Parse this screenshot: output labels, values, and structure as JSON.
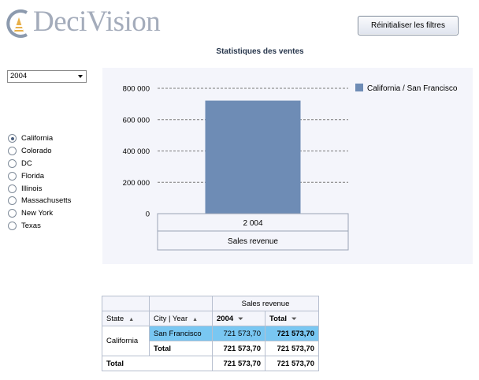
{
  "logo": {
    "text": "DeciVision"
  },
  "toolbar": {
    "reset_label": "Réinitialiser les filtres"
  },
  "page": {
    "title": "Statistiques des ventes"
  },
  "filters": {
    "year": {
      "selected": "2004"
    },
    "states": [
      {
        "label": "California",
        "checked": true
      },
      {
        "label": "Colorado",
        "checked": false
      },
      {
        "label": "DC",
        "checked": false
      },
      {
        "label": "Florida",
        "checked": false
      },
      {
        "label": "Illinois",
        "checked": false
      },
      {
        "label": "Massachusetts",
        "checked": false
      },
      {
        "label": "New York",
        "checked": false
      },
      {
        "label": "Texas",
        "checked": false
      }
    ]
  },
  "chart_data": {
    "type": "bar",
    "categories": [
      "2 004"
    ],
    "series": [
      {
        "name": "California / San Francisco",
        "values": [
          721573.7
        ],
        "color": "#6e8cb5"
      }
    ],
    "xlabel": "Sales revenue",
    "ylabel": "",
    "ylim": [
      0,
      800000
    ],
    "yticks": [
      0,
      200000,
      400000,
      600000,
      800000
    ],
    "ytick_labels": [
      "0",
      "200 000",
      "400 000",
      "600 000",
      "800 000"
    ],
    "grid": true,
    "legend": "top-right"
  },
  "pivot": {
    "measure_header": "Sales revenue",
    "state_header": "State",
    "city_year_header": "City | Year",
    "year_header": "2004",
    "total_header": "Total",
    "state": "California",
    "city": "San Francisco",
    "city_value": "721 573,70",
    "city_total": "721 573,70",
    "subtotal_label": "Total",
    "subtotal_value": "721 573,70",
    "subtotal_total": "721 573,70",
    "grand_total_label": "Total",
    "grand_total_value": "721 573,70",
    "grand_total_total": "721 573,70"
  }
}
